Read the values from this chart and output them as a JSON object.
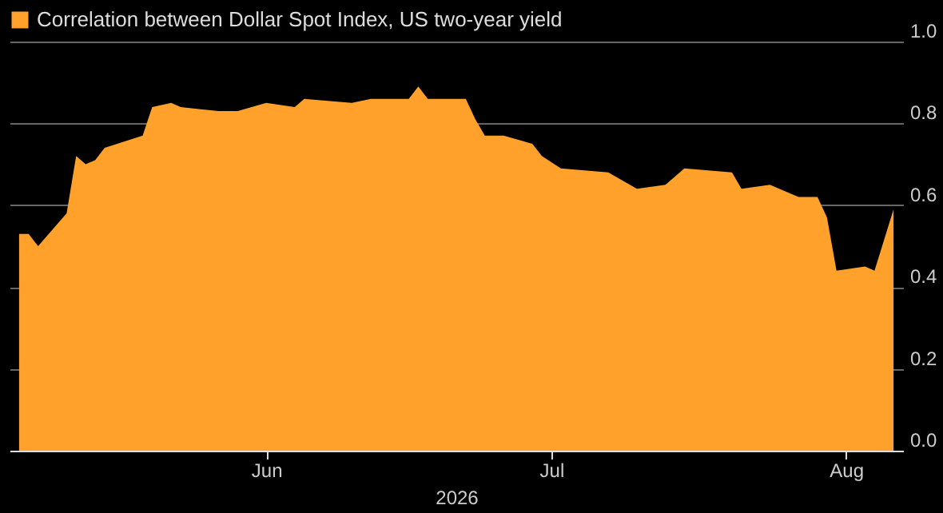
{
  "chart_data": {
    "type": "area",
    "xlabel": "2026",
    "x": [
      "2026-05-06",
      "2026-05-07",
      "2026-05-08",
      "2026-05-11",
      "2026-05-12",
      "2026-05-13",
      "2026-05-14",
      "2026-05-15",
      "2026-05-19",
      "2026-05-20",
      "2026-05-22",
      "2026-05-23",
      "2026-05-27",
      "2026-05-29",
      "2026-06-01",
      "2026-06-04",
      "2026-06-05",
      "2026-06-10",
      "2026-06-12",
      "2026-06-16",
      "2026-06-17",
      "2026-06-18",
      "2026-06-22",
      "2026-06-23",
      "2026-06-24",
      "2026-06-26",
      "2026-06-29",
      "2026-06-30",
      "2026-07-02",
      "2026-07-07",
      "2026-07-10",
      "2026-07-13",
      "2026-07-15",
      "2026-07-20",
      "2026-07-21",
      "2026-07-24",
      "2026-07-27",
      "2026-07-29",
      "2026-07-30",
      "2026-07-31",
      "2026-08-03",
      "2026-08-04",
      "2026-08-06"
    ],
    "series": [
      {
        "name": "Correlation between Dollar Spot Index, US two-year yield",
        "color": "#ffa12a",
        "values": [
          0.53,
          0.53,
          0.5,
          0.58,
          0.72,
          0.7,
          0.71,
          0.74,
          0.77,
          0.84,
          0.85,
          0.84,
          0.83,
          0.83,
          0.85,
          0.84,
          0.86,
          0.85,
          0.86,
          0.86,
          0.89,
          0.86,
          0.86,
          0.81,
          0.77,
          0.77,
          0.75,
          0.72,
          0.69,
          0.68,
          0.64,
          0.65,
          0.69,
          0.68,
          0.64,
          0.65,
          0.62,
          0.62,
          0.57,
          0.44,
          0.45,
          0.44,
          0.59
        ]
      }
    ],
    "xlim": [
      "2026-05-05",
      "2026-08-07"
    ],
    "xticks": [
      {
        "value": "2026-06-01",
        "label": "Jun"
      },
      {
        "value": "2026-07-01",
        "label": "Jul"
      },
      {
        "value": "2026-08-01",
        "label": "Aug"
      }
    ],
    "ylim": [
      0,
      1
    ],
    "yticks": [
      {
        "value": 0,
        "label": "0.0"
      },
      {
        "value": 0.2,
        "label": "0.2"
      },
      {
        "value": 0.4,
        "label": "0.4"
      },
      {
        "value": 0.6,
        "label": "0.6"
      },
      {
        "value": 0.8,
        "label": "0.8"
      },
      {
        "value": 1,
        "label": "1.0"
      }
    ],
    "grid": "y",
    "legend": "top left"
  }
}
